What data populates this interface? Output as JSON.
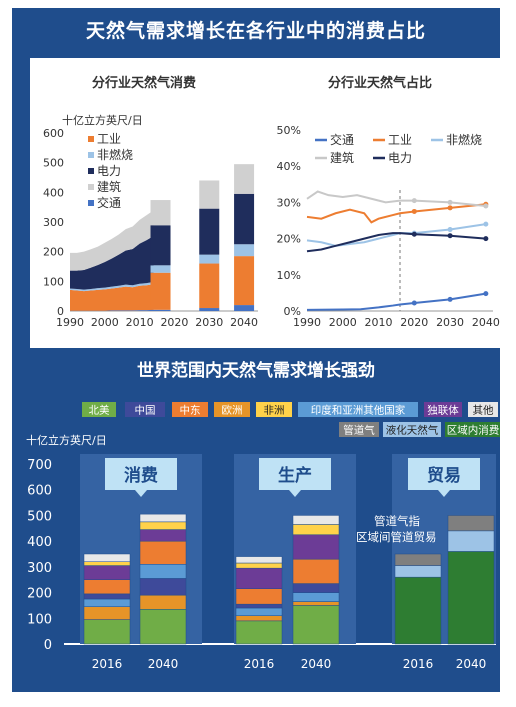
{
  "main_title": "天然气需求增长在各行业中的消费占比",
  "bottom_title": "世界范围内天然气需求增长强劲",
  "chart_data": [
    {
      "type": "area",
      "title": "分行业天然气消费",
      "ylabel": "十亿立方英尺/日",
      "x": [
        1990,
        1995,
        2000,
        2005,
        2010,
        2014,
        2016,
        2030,
        2040
      ],
      "x_ticks": [
        "1990",
        "2000",
        "2010",
        "2020",
        "2030",
        "2040"
      ],
      "y_ticks": [
        "0",
        "100",
        "200",
        "300",
        "400",
        "500",
        "600"
      ],
      "ylim": [
        0,
        600
      ],
      "xlim": [
        1990,
        2044
      ],
      "history_years": [
        1990,
        1992,
        1994,
        1996,
        1998,
        2000,
        2002,
        2004,
        2006,
        2008,
        2010,
        2012,
        2014
      ],
      "history_series": [
        {
          "name": "交通",
          "color": "#4472c4",
          "values": [
            1,
            1,
            1,
            1,
            1,
            1,
            2,
            2,
            2,
            2,
            3,
            3,
            4
          ]
        },
        {
          "name": "工业",
          "color": "#ed7d31",
          "values": [
            70,
            68,
            66,
            68,
            70,
            72,
            74,
            77,
            80,
            78,
            82,
            84,
            86
          ]
        },
        {
          "name": "非燃烧",
          "color": "#9dc3e6",
          "values": [
            5,
            5,
            5,
            5,
            6,
            6,
            6,
            6,
            7,
            7,
            7,
            7,
            8
          ]
        },
        {
          "name": "电力",
          "color": "#1f2d5c",
          "values": [
            60,
            62,
            66,
            72,
            78,
            86,
            95,
            105,
            115,
            122,
            135,
            145,
            155
          ]
        },
        {
          "name": "建筑",
          "color": "#d0d0d0",
          "values": [
            60,
            60,
            62,
            62,
            62,
            65,
            66,
            68,
            72,
            76,
            80,
            84,
            86
          ]
        }
      ],
      "projection_years": [
        2016,
        2030,
        2040
      ],
      "projection_series": [
        {
          "name": "交通",
          "color": "#4472c4",
          "values": [
            4,
            10,
            20
          ]
        },
        {
          "name": "工业",
          "color": "#ed7d31",
          "values": [
            125,
            150,
            165
          ]
        },
        {
          "name": "非燃烧",
          "color": "#9dc3e6",
          "values": [
            25,
            30,
            40
          ]
        },
        {
          "name": "电力",
          "color": "#1f2d5c",
          "values": [
            135,
            155,
            170
          ]
        },
        {
          "name": "建筑",
          "color": "#d0d0d0",
          "values": [
            85,
            95,
            100
          ]
        }
      ],
      "legend_order": [
        "工业",
        "非燃烧",
        "电力",
        "建筑",
        "交通"
      ]
    },
    {
      "type": "line",
      "title": "分行业天然气占比",
      "x_ticks": [
        "1990",
        "2000",
        "2010",
        "2020",
        "2030",
        "2040"
      ],
      "y_ticks": [
        "0%",
        "10%",
        "20%",
        "30%",
        "40%",
        "50%"
      ],
      "ylim": [
        0,
        50
      ],
      "xlim": [
        1990,
        2042
      ],
      "divider_x": 2016,
      "series": [
        {
          "name": "交通",
          "color": "#4472c4",
          "x": [
            1990,
            2000,
            2005,
            2010,
            2014,
            2016,
            2020,
            2030,
            2040
          ],
          "values": [
            0.3,
            0.4,
            0.5,
            1,
            1.5,
            1.8,
            2.2,
            3.2,
            4.8
          ]
        },
        {
          "name": "工业",
          "color": "#ed7d31",
          "x": [
            1990,
            1994,
            1998,
            2002,
            2006,
            2008,
            2010,
            2014,
            2016,
            2020,
            2030,
            2040
          ],
          "values": [
            26,
            25.5,
            27,
            28,
            27,
            24.5,
            25.5,
            26.5,
            27,
            27.5,
            28.5,
            29.5
          ]
        },
        {
          "name": "非燃烧",
          "color": "#9dc3e6",
          "x": [
            1990,
            1994,
            1998,
            2002,
            2006,
            2010,
            2014,
            2016,
            2020,
            2030,
            2040
          ],
          "values": [
            19.5,
            19,
            18,
            18.5,
            19,
            20,
            21,
            21.5,
            21.5,
            22.5,
            24
          ]
        },
        {
          "name": "建筑",
          "color": "#c8c8c8",
          "x": [
            1990,
            1993,
            1996,
            2000,
            2004,
            2008,
            2012,
            2016,
            2020,
            2030,
            2040
          ],
          "values": [
            31,
            33,
            32,
            31.5,
            32,
            31,
            30,
            30.5,
            30.5,
            30,
            29
          ]
        },
        {
          "name": "电力",
          "color": "#1f2d5c",
          "x": [
            1990,
            1994,
            1998,
            2002,
            2006,
            2010,
            2014,
            2016,
            2020,
            2030,
            2040
          ],
          "values": [
            16.5,
            17,
            18,
            19,
            20,
            21,
            21.5,
            21.5,
            21.2,
            20.8,
            20
          ]
        }
      ],
      "legend_order": [
        "交通",
        "工业",
        "非燃烧",
        "建筑",
        "电力"
      ]
    },
    {
      "type": "bar",
      "ylabel": "十亿立方英尺/日",
      "y_ticks": [
        "0",
        "100",
        "200",
        "300",
        "400",
        "500",
        "600",
        "700"
      ],
      "ylim": [
        0,
        700
      ],
      "legend": [
        {
          "name": "北美",
          "color": "#70ad47"
        },
        {
          "name": "中国",
          "color": "#3e4a9a"
        },
        {
          "name": "中东",
          "color": "#ed7d31"
        },
        {
          "name": "欧洲",
          "color": "#e69428"
        },
        {
          "name": "非洲",
          "color": "#ffd24a"
        },
        {
          "name": "印度和亚洲其他国家",
          "color": "#5b9bd5"
        },
        {
          "name": "独联体",
          "color": "#6c3c96"
        },
        {
          "name": "其他",
          "color": "#e8e8e8"
        },
        {
          "name": "管道气",
          "color": "#7f7f7f"
        },
        {
          "name": "液化天然气",
          "color": "#9dc3e6"
        },
        {
          "name": "区域内消费",
          "color": "#2e7d32"
        }
      ],
      "groups": [
        {
          "label": "消费",
          "years": [
            "2016",
            "2040"
          ],
          "stacks": [
            [
              {
                "name": "北美",
                "value": 95
              },
              {
                "name": "欧洲",
                "value": 50
              },
              {
                "name": "印度和亚洲其他国家",
                "value": 30
              },
              {
                "name": "中国",
                "value": 20
              },
              {
                "name": "中东",
                "value": 55
              },
              {
                "name": "独联体",
                "value": 55
              },
              {
                "name": "非洲",
                "value": 15
              },
              {
                "name": "其他",
                "value": 30
              }
            ],
            [
              {
                "name": "北美",
                "value": 135
              },
              {
                "name": "欧洲",
                "value": 55
              },
              {
                "name": "中国",
                "value": 65
              },
              {
                "name": "印度和亚洲其他国家",
                "value": 55
              },
              {
                "name": "中东",
                "value": 90
              },
              {
                "name": "独联体",
                "value": 45
              },
              {
                "name": "非洲",
                "value": 30
              },
              {
                "name": "其他",
                "value": 30
              }
            ]
          ]
        },
        {
          "label": "生产",
          "years": [
            "2016",
            "2040"
          ],
          "stacks": [
            [
              {
                "name": "北美",
                "value": 90
              },
              {
                "name": "欧洲",
                "value": 20
              },
              {
                "name": "印度和亚洲其他国家",
                "value": 30
              },
              {
                "name": "中国",
                "value": 15
              },
              {
                "name": "中东",
                "value": 60
              },
              {
                "name": "独联体",
                "value": 80
              },
              {
                "name": "非洲",
                "value": 20
              },
              {
                "name": "其他",
                "value": 25
              }
            ],
            [
              {
                "name": "北美",
                "value": 150
              },
              {
                "name": "欧洲",
                "value": 15
              },
              {
                "name": "印度和亚洲其他国家",
                "value": 35
              },
              {
                "name": "中国",
                "value": 35
              },
              {
                "name": "中东",
                "value": 95
              },
              {
                "name": "独联体",
                "value": 95
              },
              {
                "name": "非洲",
                "value": 40
              },
              {
                "name": "其他",
                "value": 35
              }
            ]
          ]
        },
        {
          "label": "贸易",
          "years": [
            "2016",
            "2040"
          ],
          "stacks": [
            [
              {
                "name": "区域内消费",
                "value": 260
              },
              {
                "name": "液化天然气",
                "value": 45
              },
              {
                "name": "管道气",
                "value": 45
              }
            ],
            [
              {
                "name": "区域内消费",
                "value": 360
              },
              {
                "name": "液化天然气",
                "value": 80
              },
              {
                "name": "管道气",
                "value": 60
              }
            ]
          ]
        }
      ],
      "annotation": [
        "管道气指",
        "区域间管道贸易"
      ]
    }
  ]
}
